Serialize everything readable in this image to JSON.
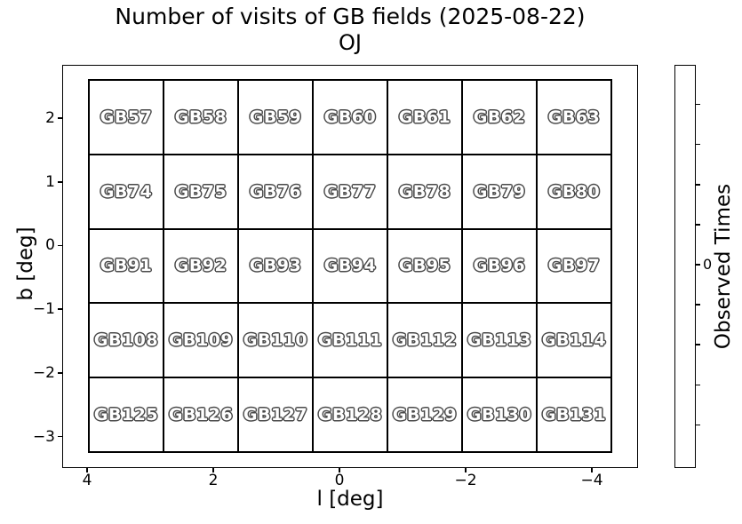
{
  "figure": {
    "title": "Number of visits of GB fields (2025-08-22)",
    "subtitle": "OJ"
  },
  "axes": {
    "xlabel": "l [deg]",
    "ylabel": "b [deg]",
    "x_ticks": [
      "4",
      "2",
      "0",
      "−2",
      "−4"
    ],
    "y_ticks": [
      "2",
      "1",
      "0",
      "−1",
      "−2",
      "−3"
    ]
  },
  "colorbar": {
    "label": "Observed Times",
    "visible_tick_label": "0",
    "num_ticks": 9,
    "bar_color": "#ffffff"
  },
  "fields": {
    "rows": [
      [
        "GB57",
        "GB58",
        "GB59",
        "GB60",
        "GB61",
        "GB62",
        "GB63"
      ],
      [
        "GB74",
        "GB75",
        "GB76",
        "GB77",
        "GB78",
        "GB79",
        "GB80"
      ],
      [
        "GB91",
        "GB92",
        "GB93",
        "GB94",
        "GB95",
        "GB96",
        "GB97"
      ],
      [
        "GB108",
        "GB109",
        "GB110",
        "GB111",
        "GB112",
        "GB113",
        "GB114"
      ],
      [
        "GB125",
        "GB126",
        "GB127",
        "GB128",
        "GB129",
        "GB130",
        "GB131"
      ]
    ]
  },
  "colors": {
    "cell_fill": "#ffffff",
    "grid_line": "#000000",
    "field_label_fill": "#ffffff",
    "field_label_outline": "#4a4a4a"
  },
  "chart_data": {
    "type": "heatmap",
    "title": "Number of visits of GB fields (2025-08-22)",
    "subtitle": "OJ",
    "xlabel": "l [deg]",
    "ylabel": "b [deg]",
    "x_tick_labels": [
      4,
      2,
      0,
      -2,
      -4
    ],
    "y_tick_labels": [
      2,
      1,
      0,
      -1,
      -2,
      -3
    ],
    "x_axis_inverted": true,
    "xlim": [
      4.4,
      -4.7
    ],
    "ylim": [
      -3.5,
      2.85
    ],
    "grid_rows": 5,
    "grid_cols": 7,
    "cell_labels": [
      [
        "GB57",
        "GB58",
        "GB59",
        "GB60",
        "GB61",
        "GB62",
        "GB63"
      ],
      [
        "GB74",
        "GB75",
        "GB76",
        "GB77",
        "GB78",
        "GB79",
        "GB80"
      ],
      [
        "GB91",
        "GB92",
        "GB93",
        "GB94",
        "GB95",
        "GB96",
        "GB97"
      ],
      [
        "GB108",
        "GB109",
        "GB110",
        "GB111",
        "GB112",
        "GB113",
        "GB114"
      ],
      [
        "GB125",
        "GB126",
        "GB127",
        "GB128",
        "GB129",
        "GB130",
        "GB131"
      ]
    ],
    "cell_values": [
      [
        0,
        0,
        0,
        0,
        0,
        0,
        0
      ],
      [
        0,
        0,
        0,
        0,
        0,
        0,
        0
      ],
      [
        0,
        0,
        0,
        0,
        0,
        0,
        0
      ],
      [
        0,
        0,
        0,
        0,
        0,
        0,
        0
      ],
      [
        0,
        0,
        0,
        0,
        0,
        0,
        0
      ]
    ],
    "cell_uniform_fill": "#ffffff",
    "colorbar": {
      "label": "Observed Times",
      "visible_tick_labels": [
        0
      ],
      "color": "#ffffff",
      "position": "right"
    },
    "legend": "none",
    "grid_on": true
  }
}
